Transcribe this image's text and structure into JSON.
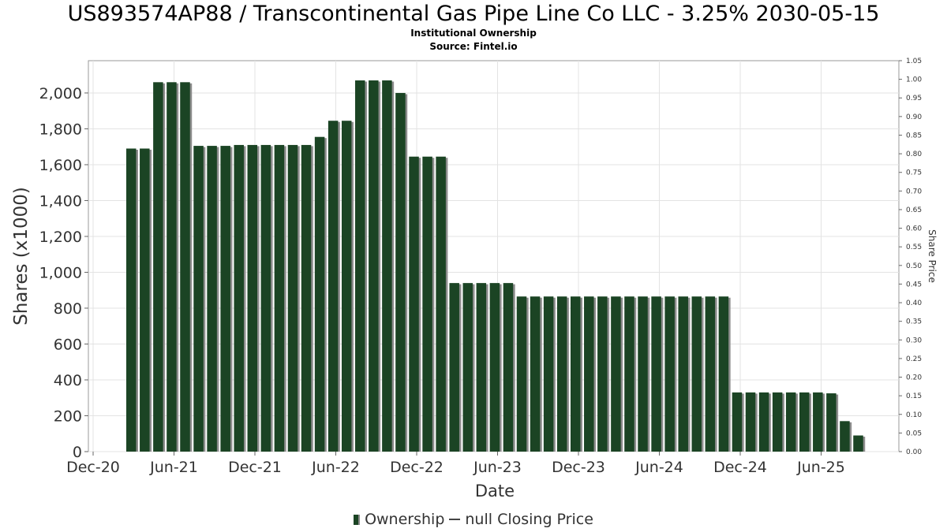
{
  "chart_data": {
    "type": "bar",
    "title": "US893574AP88 / Transcontinental Gas Pipe Line Co LLC - 3.25% 2030-05-15",
    "subtitle_1": "Institutional Ownership",
    "subtitle_2": "Source: Fintel.io",
    "xlabel": "Date",
    "ylabel": "Shares (x1000)",
    "y2label": "Share Price",
    "x_ticks": [
      "Dec-20",
      "Jun-21",
      "Dec-21",
      "Jun-22",
      "Dec-22",
      "Jun-23",
      "Dec-23",
      "Jun-24",
      "Dec-24",
      "Jun-25"
    ],
    "y_ticks": [
      "0",
      "200",
      "400",
      "600",
      "800",
      "1,000",
      "1,200",
      "1,400",
      "1,600",
      "1,800",
      "2,000"
    ],
    "y2_ticks": [
      "0.00",
      "0.05",
      "0.10",
      "0.15",
      "0.20",
      "0.25",
      "0.30",
      "0.35",
      "0.40",
      "0.45",
      "0.50",
      "0.55",
      "0.60",
      "0.65",
      "0.70",
      "0.75",
      "0.80",
      "0.85",
      "0.90",
      "0.95",
      "1.00",
      "1.05"
    ],
    "ylim": [
      0,
      2180
    ],
    "y2lim": [
      0,
      1.05
    ],
    "grid": true,
    "legend_position": "bottom",
    "series": [
      {
        "name": "Ownership",
        "color": "#1b4424",
        "values": [
          1690,
          1690,
          2060,
          2060,
          2060,
          1705,
          1705,
          1705,
          1710,
          1710,
          1710,
          1710,
          1710,
          1710,
          1755,
          1845,
          1845,
          2070,
          2070,
          2070,
          2000,
          1645,
          1645,
          1645,
          940,
          940,
          940,
          940,
          940,
          865,
          865,
          865,
          865,
          865,
          865,
          865,
          865,
          865,
          865,
          865,
          865,
          865,
          865,
          865,
          865,
          330,
          330,
          330,
          330,
          330,
          330,
          330,
          325,
          170,
          90
        ]
      }
    ],
    "legend": {
      "ownership_label": "Ownership",
      "price_label": "null Closing Price"
    }
  }
}
